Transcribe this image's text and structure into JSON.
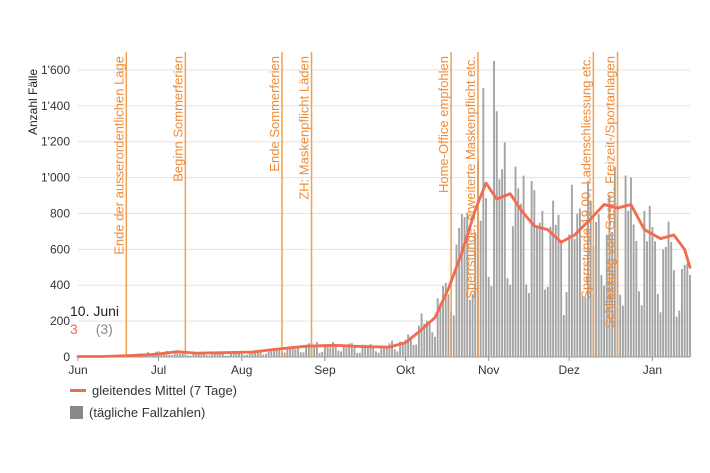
{
  "colors": {
    "bars": "#a3a3a3",
    "line": "#f26b4e",
    "event": "#f0a050",
    "event_text": "#f08a35",
    "grid": "#e3e3e3",
    "axis_text": "#333333"
  },
  "tooltip": {
    "date": "10. Juni",
    "value": "3",
    "value_secondary": "(3)"
  },
  "legend": [
    {
      "label": "gleitendes Mittel (7 Tage)",
      "kind": "line",
      "color": "#f26b4e"
    },
    {
      "label": "(tägliche Fallzahlen)",
      "kind": "box",
      "color": "#888888"
    }
  ],
  "chart_data": {
    "type": "bar",
    "ylabel": "Anzahl Fälle",
    "ylim": [
      0,
      1700
    ],
    "yticks": [
      {
        "value": 0,
        "label": "0"
      },
      {
        "value": 200,
        "label": "200"
      },
      {
        "value": 400,
        "label": "400"
      },
      {
        "value": 600,
        "label": "600"
      },
      {
        "value": 800,
        "label": "800"
      },
      {
        "value": 1000,
        "label": "1'000"
      },
      {
        "value": 1200,
        "label": "1'200"
      },
      {
        "value": 1400,
        "label": "1'400"
      },
      {
        "value": 1600,
        "label": "1'600"
      }
    ],
    "xstart": "2020-06-01",
    "xend": "2021-01-15",
    "xticks": [
      {
        "date": "2020-06-01",
        "label": "Jun"
      },
      {
        "date": "2020-07-01",
        "label": "Jul"
      },
      {
        "date": "2020-08-01",
        "label": "Aug"
      },
      {
        "date": "2020-09-01",
        "label": "Sep"
      },
      {
        "date": "2020-10-01",
        "label": "Okt"
      },
      {
        "date": "2020-11-01",
        "label": "Nov"
      },
      {
        "date": "2020-12-01",
        "label": "Dez"
      },
      {
        "date": "2021-01-01",
        "label": "Jan"
      }
    ],
    "events": [
      {
        "date": "2020-06-19",
        "label": "Ende der ausserordentlichen Lage"
      },
      {
        "date": "2020-07-11",
        "label": "Beginn Sommerferien"
      },
      {
        "date": "2020-08-16",
        "label": "Ende Sommerferien"
      },
      {
        "date": "2020-08-27",
        "label": "ZH: Maskenpflicht Läden"
      },
      {
        "date": "2020-10-18",
        "label": "Home-Office empfohlen"
      },
      {
        "date": "2020-10-28",
        "label": "Sperrstunde, erweiterte Maskenpflicht etc."
      },
      {
        "date": "2020-12-10",
        "label": "Sperrstunde 19.00, Ladenschliessung etc."
      },
      {
        "date": "2020-12-19",
        "label": "Schliessung von Gastro, Freizeit-/Sportanlagen"
      }
    ],
    "daily_anchors": [
      {
        "date": "2020-06-01",
        "value": 3
      },
      {
        "date": "2020-06-10",
        "value": 3
      },
      {
        "date": "2020-06-20",
        "value": 8
      },
      {
        "date": "2020-07-01",
        "value": 30
      },
      {
        "date": "2020-07-15",
        "value": 20
      },
      {
        "date": "2020-08-01",
        "value": 25
      },
      {
        "date": "2020-08-15",
        "value": 40
      },
      {
        "date": "2020-08-25",
        "value": 70
      },
      {
        "date": "2020-09-10",
        "value": 65
      },
      {
        "date": "2020-09-20",
        "value": 60
      },
      {
        "date": "2020-09-30",
        "value": 90
      },
      {
        "date": "2020-10-05",
        "value": 180
      },
      {
        "date": "2020-10-10",
        "value": 260
      },
      {
        "date": "2020-10-15",
        "value": 400
      },
      {
        "date": "2020-10-20",
        "value": 560
      },
      {
        "date": "2020-10-25",
        "value": 800
      },
      {
        "date": "2020-10-30",
        "value": 1000
      },
      {
        "date": "2020-11-02",
        "value": 1150
      },
      {
        "date": "2020-11-10",
        "value": 900
      },
      {
        "date": "2020-11-20",
        "value": 750
      },
      {
        "date": "2020-11-30",
        "value": 650
      },
      {
        "date": "2020-12-10",
        "value": 800
      },
      {
        "date": "2020-12-20",
        "value": 850
      },
      {
        "date": "2020-12-31",
        "value": 700
      },
      {
        "date": "2021-01-10",
        "value": 600
      },
      {
        "date": "2021-01-15",
        "value": 500
      }
    ],
    "daily_peaks": [
      {
        "date": "2020-11-03",
        "value": 1650
      },
      {
        "date": "2020-10-30",
        "value": 1500
      },
      {
        "date": "2020-11-04",
        "value": 1370
      },
      {
        "date": "2020-10-21",
        "value": 720
      },
      {
        "date": "2020-12-24",
        "value": 1000
      },
      {
        "date": "2020-12-08",
        "value": 980
      },
      {
        "date": "2020-12-18",
        "value": 1060
      },
      {
        "date": "2020-12-02",
        "value": 960
      }
    ],
    "series": [
      {
        "name": "gleitendes Mittel (7 Tage)",
        "type": "line",
        "points": [
          {
            "date": "2020-06-01",
            "value": 3
          },
          {
            "date": "2020-06-10",
            "value": 3
          },
          {
            "date": "2020-06-20",
            "value": 8
          },
          {
            "date": "2020-06-30",
            "value": 15
          },
          {
            "date": "2020-07-08",
            "value": 30
          },
          {
            "date": "2020-07-15",
            "value": 22
          },
          {
            "date": "2020-07-25",
            "value": 24
          },
          {
            "date": "2020-08-05",
            "value": 28
          },
          {
            "date": "2020-08-15",
            "value": 45
          },
          {
            "date": "2020-08-25",
            "value": 60
          },
          {
            "date": "2020-09-05",
            "value": 65
          },
          {
            "date": "2020-09-15",
            "value": 58
          },
          {
            "date": "2020-09-25",
            "value": 55
          },
          {
            "date": "2020-10-01",
            "value": 80
          },
          {
            "date": "2020-10-06",
            "value": 140
          },
          {
            "date": "2020-10-12",
            "value": 220
          },
          {
            "date": "2020-10-17",
            "value": 380
          },
          {
            "date": "2020-10-22",
            "value": 580
          },
          {
            "date": "2020-10-27",
            "value": 820
          },
          {
            "date": "2020-10-31",
            "value": 970
          },
          {
            "date": "2020-11-04",
            "value": 880
          },
          {
            "date": "2020-11-09",
            "value": 910
          },
          {
            "date": "2020-11-13",
            "value": 820
          },
          {
            "date": "2020-11-18",
            "value": 730
          },
          {
            "date": "2020-11-23",
            "value": 710
          },
          {
            "date": "2020-11-28",
            "value": 640
          },
          {
            "date": "2020-12-03",
            "value": 680
          },
          {
            "date": "2020-12-09",
            "value": 770
          },
          {
            "date": "2020-12-14",
            "value": 850
          },
          {
            "date": "2020-12-19",
            "value": 830
          },
          {
            "date": "2020-12-24",
            "value": 850
          },
          {
            "date": "2020-12-29",
            "value": 710
          },
          {
            "date": "2021-01-04",
            "value": 660
          },
          {
            "date": "2021-01-09",
            "value": 680
          },
          {
            "date": "2021-01-13",
            "value": 600
          },
          {
            "date": "2021-01-15",
            "value": 500
          }
        ]
      }
    ]
  }
}
